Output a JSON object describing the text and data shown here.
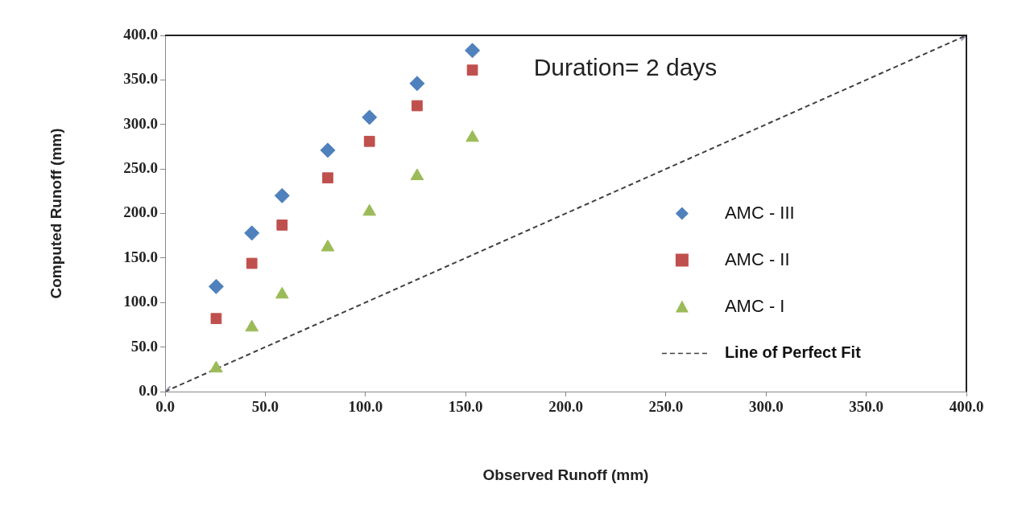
{
  "chart_data": {
    "type": "scatter",
    "xlabel": "Observed Runoff (mm)",
    "ylabel": "Computed Runoff (mm)",
    "annotations": [
      "Duration= 2 days"
    ],
    "xlim": [
      0,
      400
    ],
    "ylim": [
      0,
      400
    ],
    "xticks": [
      {
        "value": 0,
        "label": "0.0"
      },
      {
        "value": 50,
        "label": "50.0"
      },
      {
        "value": 100,
        "label": "100.0"
      },
      {
        "value": 150,
        "label": "150.0"
      },
      {
        "value": 200,
        "label": "200.0"
      },
      {
        "value": 250,
        "label": "250.0"
      },
      {
        "value": 300,
        "label": "300.0"
      },
      {
        "value": 350,
        "label": "350.0"
      },
      {
        "value": 400,
        "label": "400.0"
      }
    ],
    "yticks": [
      {
        "value": 0,
        "label": "0.0"
      },
      {
        "value": 50,
        "label": "50.0"
      },
      {
        "value": 100,
        "label": "100.0"
      },
      {
        "value": 150,
        "label": "150.0"
      },
      {
        "value": 200,
        "label": "200.0"
      },
      {
        "value": 250,
        "label": "250.0"
      },
      {
        "value": 300,
        "label": "300.0"
      },
      {
        "value": 350,
        "label": "350.0"
      },
      {
        "value": 400,
        "label": "400.0"
      }
    ],
    "grid": false,
    "legend": "right",
    "series": [
      {
        "name": "AMC - III",
        "color": "#4f81bd",
        "marker": "diamond",
        "x": [
          25.5,
          43.3,
          58.4,
          81.2,
          102,
          125.8,
          153.4
        ],
        "values": [
          118,
          178,
          220,
          271,
          308,
          346,
          383
        ]
      },
      {
        "name": "AMC - II",
        "color": "#c0504d",
        "marker": "square",
        "x": [
          25.5,
          43.3,
          58.4,
          81.2,
          102,
          125.8,
          153.4
        ],
        "values": [
          82,
          144,
          187,
          240,
          281,
          321,
          361
        ]
      },
      {
        "name": "AMC - I",
        "color": "#9bbb59",
        "marker": "triangle",
        "x": [
          25.5,
          43.3,
          58.4,
          81.2,
          102,
          125.8,
          153.4
        ],
        "values": [
          26,
          72,
          109,
          162,
          202,
          242,
          285
        ]
      },
      {
        "name": "Line of Perfect Fit",
        "type": "line",
        "color": "#404040",
        "line_style": "dashed",
        "marker": "cross",
        "x": [
          0,
          400
        ],
        "values": [
          0,
          400
        ]
      }
    ]
  }
}
